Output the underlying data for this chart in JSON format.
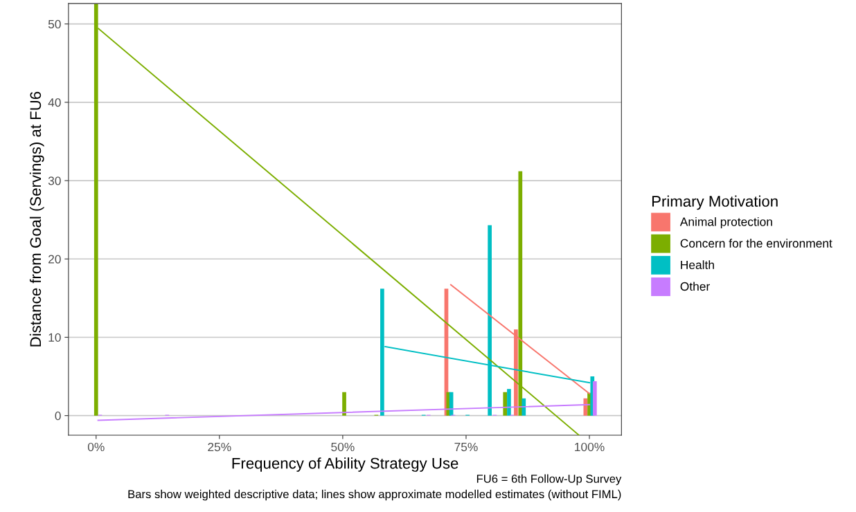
{
  "chart_data": {
    "type": "bar",
    "xlabel": "Frequency of Ability Strategy Use",
    "ylabel": "Distance from Goal (Servings) at FU6",
    "legend_title": "Primary Motivation",
    "legend": "right",
    "grid": "y",
    "xlim": [
      -5.6,
      106.5
    ],
    "ylim": [
      -2.5,
      52.6
    ],
    "xticks": [
      {
        "value": 0,
        "label": "0%"
      },
      {
        "value": 25,
        "label": "25%"
      },
      {
        "value": 50,
        "label": "50%"
      },
      {
        "value": 75,
        "label": "75%"
      },
      {
        "value": 100,
        "label": "100%"
      }
    ],
    "yticks": [
      0,
      10,
      20,
      30,
      40,
      50
    ],
    "series": [
      {
        "name": "Animal protection",
        "color": "#f8766d",
        "x": [
          71.0,
          85.1,
          99.2
        ],
        "values": [
          16.2,
          11.0,
          2.2
        ]
      },
      {
        "name": "Concern for the environment",
        "color": "#7cae00",
        "x": [
          0,
          50.3,
          56.8,
          71.4,
          82.9,
          86.0,
          100
        ],
        "values": [
          52.6,
          3.0,
          0.1,
          3.0,
          3.0,
          31.2,
          2.9
        ]
      },
      {
        "name": "Health",
        "color": "#00bfc4",
        "x": [
          58.0,
          66.4,
          72.0,
          75.3,
          79.8,
          83.7,
          86.7,
          100.6
        ],
        "values": [
          16.2,
          0.1,
          3.0,
          0.1,
          24.3,
          3.4,
          2.2,
          5.0
        ]
      },
      {
        "name": "Other",
        "color": "#c77cff",
        "x": [
          0.8,
          14.4,
          67.4,
          72.4,
          80.8,
          84.3,
          101.1
        ],
        "values": [
          0.1,
          0.1,
          0.1,
          0.1,
          0.1,
          0.1,
          4.4
        ]
      },
      {
        "type": "line",
        "color": "#f8766d",
        "x": [
          71.9,
          100
        ],
        "values": [
          16.7,
          2.8
        ]
      },
      {
        "type": "line",
        "color": "#7cae00",
        "x": [
          0.5,
          97.9
        ],
        "values": [
          49.4,
          -2.5
        ]
      },
      {
        "type": "line",
        "color": "#00bfc4",
        "x": [
          58.6,
          100
        ],
        "values": [
          8.8,
          4.2
        ]
      },
      {
        "type": "line",
        "color": "#c77cff",
        "x": [
          0.4,
          100
        ],
        "values": [
          -0.6,
          1.4
        ]
      }
    ],
    "annotations": [
      "FU6 = 6th Follow-Up Survey",
      "Bars show weighted descriptive data; lines show approximate modelled estimates (without FIML)"
    ]
  }
}
